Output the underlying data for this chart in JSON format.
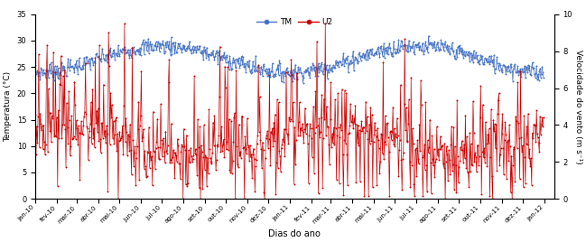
{
  "title": "",
  "xlabel": "Dias do ano",
  "ylabel_left": "Temperatura (°C)",
  "ylabel_right": "Velocidade do vento (m s⁻¹)",
  "legend_labels": [
    "TM",
    "U2"
  ],
  "line_color_TM": "#4472C4",
  "line_color_U2": "#CC0000",
  "ylim_left": [
    0,
    35
  ],
  "ylim_right": [
    0,
    10
  ],
  "yticks_left": [
    0,
    5,
    10,
    15,
    20,
    25,
    30,
    35
  ],
  "yticks_right": [
    0,
    2,
    4,
    6,
    8,
    10
  ],
  "figsize": [
    6.49,
    2.68
  ],
  "dpi": 100,
  "xtick_labels": [
    "jan-10",
    "fev-10",
    "mar-10",
    "abr-10",
    "mai-10",
    "jun-10",
    "jul-10",
    "ago-10",
    "set-10",
    "out-10",
    "nov-10",
    "dez-10",
    "jan-11",
    "fev-11",
    "mar-11",
    "abr-11",
    "mai-11",
    "jun-11",
    "jul-11",
    "ago-11",
    "set-11",
    "out-11",
    "nov-11",
    "dez-11",
    "jan-12"
  ],
  "n_points": 730
}
